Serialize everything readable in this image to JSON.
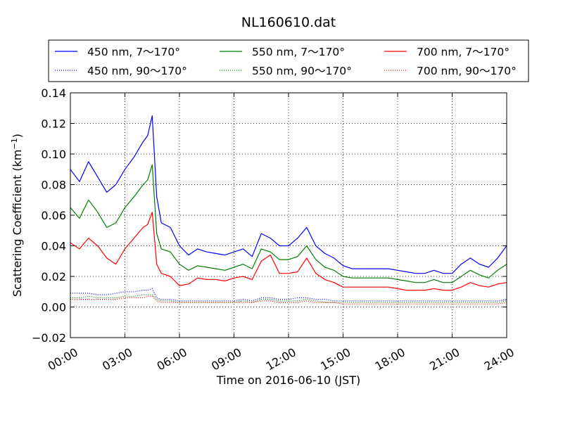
{
  "chart_data": {
    "type": "line",
    "title": "NL160610.dat",
    "xlabel": "Time on 2016-06-10 (JST)",
    "ylabel_main": "Scattering Coefficient (km",
    "ylabel_sup": "−1",
    "ylabel_close": ")",
    "xlim": [
      "00:00",
      "24:00"
    ],
    "ylim": [
      -0.02,
      0.14
    ],
    "grid": true,
    "legend_position": "top",
    "x_ticks": [
      "00:00",
      "03:00",
      "06:00",
      "09:00",
      "12:00",
      "15:00",
      "18:00",
      "21:00",
      "24:00"
    ],
    "y_ticks": [
      "−0.02",
      "0.00",
      "0.02",
      "0.04",
      "0.06",
      "0.08",
      "0.10",
      "0.12",
      "0.14"
    ],
    "x": [
      "00:00",
      "00:30",
      "01:00",
      "01:30",
      "02:00",
      "02:30",
      "03:00",
      "03:30",
      "04:00",
      "04:15",
      "04:30",
      "04:45",
      "05:00",
      "05:30",
      "06:00",
      "06:30",
      "07:00",
      "07:30",
      "08:00",
      "08:30",
      "09:00",
      "09:30",
      "10:00",
      "10:30",
      "11:00",
      "11:30",
      "12:00",
      "12:30",
      "13:00",
      "13:30",
      "14:00",
      "14:30",
      "15:00",
      "15:30",
      "16:00",
      "16:30",
      "17:00",
      "17:30",
      "18:00",
      "18:30",
      "19:00",
      "19:30",
      "20:00",
      "20:30",
      "21:00",
      "21:30",
      "22:00",
      "22:30",
      "23:00",
      "23:30",
      "24:00"
    ],
    "series": [
      {
        "name": "450 nm, 7～170°",
        "color": "#0000ff",
        "style": "solid",
        "values": [
          0.09,
          0.082,
          0.095,
          0.085,
          0.075,
          0.08,
          0.09,
          0.098,
          0.108,
          0.112,
          0.125,
          0.072,
          0.055,
          0.052,
          0.04,
          0.034,
          0.038,
          0.036,
          0.035,
          0.034,
          0.036,
          0.038,
          0.033,
          0.048,
          0.045,
          0.04,
          0.04,
          0.045,
          0.052,
          0.04,
          0.035,
          0.032,
          0.027,
          0.025,
          0.025,
          0.025,
          0.025,
          0.025,
          0.024,
          0.023,
          0.022,
          0.022,
          0.024,
          0.022,
          0.022,
          0.028,
          0.032,
          0.028,
          0.026,
          0.032,
          0.04
        ]
      },
      {
        "name": "550 nm, 7～170°",
        "color": "#008000",
        "style": "solid",
        "values": [
          0.065,
          0.058,
          0.07,
          0.062,
          0.052,
          0.055,
          0.065,
          0.072,
          0.08,
          0.083,
          0.093,
          0.048,
          0.038,
          0.036,
          0.028,
          0.024,
          0.027,
          0.026,
          0.025,
          0.024,
          0.026,
          0.028,
          0.025,
          0.038,
          0.036,
          0.031,
          0.031,
          0.033,
          0.04,
          0.031,
          0.026,
          0.024,
          0.02,
          0.019,
          0.019,
          0.019,
          0.019,
          0.019,
          0.018,
          0.017,
          0.016,
          0.016,
          0.018,
          0.016,
          0.016,
          0.02,
          0.024,
          0.021,
          0.019,
          0.024,
          0.028
        ]
      },
      {
        "name": "700 nm, 7～170°",
        "color": "#ff0000",
        "style": "solid",
        "values": [
          0.042,
          0.038,
          0.045,
          0.04,
          0.032,
          0.028,
          0.038,
          0.045,
          0.052,
          0.054,
          0.062,
          0.028,
          0.022,
          0.02,
          0.014,
          0.015,
          0.019,
          0.018,
          0.018,
          0.017,
          0.019,
          0.02,
          0.018,
          0.03,
          0.034,
          0.022,
          0.022,
          0.023,
          0.032,
          0.022,
          0.018,
          0.016,
          0.013,
          0.013,
          0.013,
          0.013,
          0.013,
          0.013,
          0.012,
          0.011,
          0.011,
          0.011,
          0.012,
          0.011,
          0.011,
          0.013,
          0.016,
          0.014,
          0.013,
          0.015,
          0.016
        ]
      },
      {
        "name": "450 nm, 90～170°",
        "color": "#0000ff",
        "style": "dotted",
        "values": [
          0.009,
          0.009,
          0.009,
          0.008,
          0.008,
          0.009,
          0.01,
          0.01,
          0.011,
          0.011,
          0.012,
          0.006,
          0.005,
          0.005,
          0.004,
          0.004,
          0.004,
          0.004,
          0.004,
          0.004,
          0.004,
          0.005,
          0.004,
          0.006,
          0.006,
          0.005,
          0.005,
          0.006,
          0.006,
          0.005,
          0.005,
          0.004,
          0.004,
          0.004,
          0.004,
          0.004,
          0.004,
          0.004,
          0.004,
          0.004,
          0.004,
          0.004,
          0.004,
          0.004,
          0.004,
          0.004,
          0.004,
          0.004,
          0.004,
          0.004,
          0.005
        ]
      },
      {
        "name": "550 nm, 90～170°",
        "color": "#008000",
        "style": "dotted",
        "values": [
          0.006,
          0.006,
          0.007,
          0.006,
          0.006,
          0.006,
          0.007,
          0.007,
          0.008,
          0.008,
          0.008,
          0.005,
          0.004,
          0.004,
          0.003,
          0.003,
          0.003,
          0.003,
          0.003,
          0.003,
          0.003,
          0.004,
          0.003,
          0.005,
          0.005,
          0.004,
          0.004,
          0.004,
          0.005,
          0.004,
          0.003,
          0.003,
          0.003,
          0.003,
          0.003,
          0.003,
          0.003,
          0.003,
          0.003,
          0.003,
          0.003,
          0.003,
          0.003,
          0.003,
          0.003,
          0.003,
          0.003,
          0.003,
          0.003,
          0.003,
          0.004
        ]
      },
      {
        "name": "700 nm, 90～170°",
        "color": "#ff0000",
        "style": "dotted",
        "values": [
          0.005,
          0.005,
          0.005,
          0.005,
          0.005,
          0.005,
          0.006,
          0.006,
          0.006,
          0.007,
          0.007,
          0.004,
          0.003,
          0.003,
          0.003,
          0.003,
          0.003,
          0.003,
          0.003,
          0.003,
          0.003,
          0.003,
          0.003,
          0.004,
          0.004,
          0.003,
          0.003,
          0.003,
          0.004,
          0.003,
          0.003,
          0.003,
          0.002,
          0.002,
          0.002,
          0.002,
          0.002,
          0.002,
          0.002,
          0.002,
          0.002,
          0.002,
          0.002,
          0.002,
          0.002,
          0.002,
          0.002,
          0.002,
          0.002,
          0.002,
          0.003
        ]
      }
    ]
  }
}
